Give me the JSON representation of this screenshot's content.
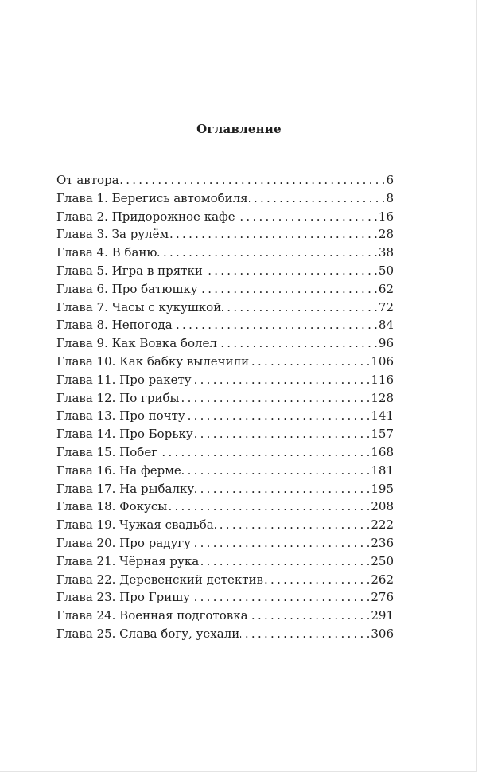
{
  "title": "Оглавление",
  "entries": [
    {
      "label": "От автора",
      "page": "6"
    },
    {
      "label": "Глава 1. Берегись автомобиля",
      "page": "8"
    },
    {
      "label": "Глава 2. Придорожное кафе",
      "page": "16"
    },
    {
      "label": "Глава 3. За рулём",
      "page": "28"
    },
    {
      "label": "Глава 4. В баню",
      "page": "38"
    },
    {
      "label": "Глава 5. Игра в прятки",
      "page": "50"
    },
    {
      "label": "Глава 6. Про батюшку",
      "page": "62"
    },
    {
      "label": "Глава 7. Часы с кукушкой",
      "page": "72"
    },
    {
      "label": "Глава 8. Непогода",
      "page": "84"
    },
    {
      "label": "Глава 9. Как Вовка болел",
      "page": "96"
    },
    {
      "label": "Глава 10. Как бабку вылечили",
      "page": "106"
    },
    {
      "label": "Глава 11. Про ракету",
      "page": "116"
    },
    {
      "label": "Глава 12. По грибы",
      "page": "128"
    },
    {
      "label": "Глава 13. Про почту",
      "page": "141"
    },
    {
      "label": "Глава 14. Про Борьку",
      "page": "157"
    },
    {
      "label": "Глава 15. Побег",
      "page": "168"
    },
    {
      "label": "Глава 16. На ферме",
      "page": "181"
    },
    {
      "label": "Глава 17. На рыбалку",
      "page": "195"
    },
    {
      "label": "Глава 18. Фокусы",
      "page": "208"
    },
    {
      "label": "Глава 19. Чужая свадьба",
      "page": "222"
    },
    {
      "label": "Глава 20. Про радугу",
      "page": "236"
    },
    {
      "label": "Глава 21. Чёрная рука",
      "page": "250"
    },
    {
      "label": "Глава 22. Деревенский детектив",
      "page": "262"
    },
    {
      "label": "Глава 23. Про Гришу",
      "page": "276"
    },
    {
      "label": "Глава 24. Военная подготовка",
      "page": "291"
    },
    {
      "label": "Глава 25. Слава богу, уехали",
      "page": "306"
    }
  ]
}
